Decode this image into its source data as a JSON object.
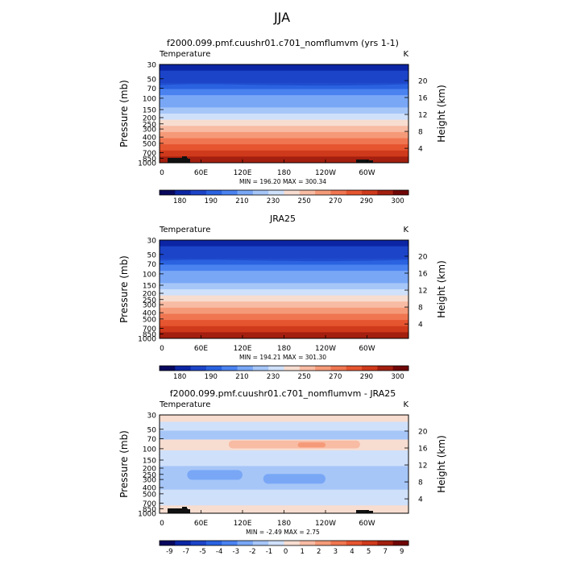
{
  "suptitle": "JJA",
  "chart_data": [
    {
      "type": "heatmap",
      "title": "f2000.099.pmf.cuushr01.c701_nomflumvm (yrs 1-1)",
      "corner_left": "Temperature",
      "corner_right": "K",
      "ylabel": "Pressure (mb)",
      "ylabel_right": "Height (km)",
      "yticks": [
        "30",
        "50",
        "70",
        "100",
        "150",
        "200",
        "250",
        "300",
        "400",
        "500",
        "700",
        "850",
        "1000"
      ],
      "yticks_right": [
        "20",
        "16",
        "12",
        "8",
        "4"
      ],
      "xticks": [
        "0",
        "60E",
        "120E",
        "180",
        "120W",
        "60W"
      ],
      "stats": "MIN = 196.20   MAX = 300.34",
      "colorbar_labels": [
        "180",
        "190",
        "210",
        "230",
        "250",
        "270",
        "290",
        "300"
      ],
      "colorbar_colors": [
        "#08085e",
        "#0b25a4",
        "#1c44c8",
        "#2a62e0",
        "#4a82f0",
        "#79a7f6",
        "#a6c6f8",
        "#cfe0fa",
        "#f7ddd0",
        "#f8bba3",
        "#f59a78",
        "#ef7651",
        "#e55530",
        "#cf3a1c",
        "#a31f0f",
        "#700606"
      ],
      "level_bands": [
        1,
        2,
        2,
        3,
        4,
        5,
        5,
        6,
        7,
        8,
        9,
        10,
        11,
        12,
        13,
        14
      ],
      "topography": true
    },
    {
      "type": "heatmap",
      "title": "JRA25",
      "corner_left": "Temperature",
      "corner_right": "K",
      "ylabel": "Pressure (mb)",
      "ylabel_right": "Height (km)",
      "yticks": [
        "30",
        "50",
        "70",
        "100",
        "150",
        "200",
        "250",
        "300",
        "400",
        "500",
        "700",
        "850",
        "1000"
      ],
      "yticks_right": [
        "20",
        "16",
        "12",
        "8",
        "4"
      ],
      "xticks": [
        "0",
        "60E",
        "120E",
        "180",
        "120W",
        "60W"
      ],
      "stats": "MIN = 194.21   MAX = 301.30",
      "colorbar_labels": [
        "180",
        "190",
        "210",
        "230",
        "250",
        "270",
        "290",
        "300"
      ],
      "colorbar_colors": [
        "#08085e",
        "#0b25a4",
        "#1c44c8",
        "#2a62e0",
        "#4a82f0",
        "#79a7f6",
        "#a6c6f8",
        "#cfe0fa",
        "#f7ddd0",
        "#f8bba3",
        "#f59a78",
        "#ef7651",
        "#e55530",
        "#cf3a1c",
        "#a31f0f",
        "#700606"
      ],
      "level_bands": [
        1,
        2,
        2,
        3,
        4,
        5,
        5,
        6,
        7,
        8,
        9,
        10,
        11,
        12,
        13,
        14
      ],
      "topography": false
    },
    {
      "type": "heatmap",
      "title": "f2000.099.pmf.cuushr01.c701_nomflumvm - JRA25",
      "corner_left": "Temperature",
      "corner_right": "K",
      "ylabel": "Pressure (mb)",
      "ylabel_right": "Height (km)",
      "yticks": [
        "30",
        "50",
        "70",
        "100",
        "150",
        "200",
        "250",
        "300",
        "400",
        "500",
        "700",
        "850",
        "1000"
      ],
      "yticks_right": [
        "20",
        "16",
        "12",
        "8",
        "4"
      ],
      "xticks": [
        "0",
        "60E",
        "120E",
        "180",
        "120W",
        "60W"
      ],
      "stats": "MIN = -2.49   MAX = 2.75",
      "colorbar_labels": [
        "-9",
        "-7",
        "-5",
        "-4",
        "-3",
        "-2",
        "-1",
        "0",
        "1",
        "2",
        "3",
        "4",
        "5",
        "7",
        "9"
      ],
      "colorbar_colors": [
        "#08085e",
        "#0b25a4",
        "#1c44c8",
        "#2a62e0",
        "#4a82f0",
        "#79a7f6",
        "#a6c6f8",
        "#cfe0fa",
        "#f7ddd0",
        "#f8bba3",
        "#f59a78",
        "#ef7651",
        "#e55530",
        "#cf3a1c",
        "#a31f0f",
        "#700606"
      ],
      "diff_pattern": [
        {
          "x0": 0,
          "x1": 360,
          "p0": 0,
          "p1": 0.07,
          "band": 8
        },
        {
          "x0": 0,
          "x1": 360,
          "p0": 0.07,
          "p1": 0.16,
          "band": 7
        },
        {
          "x0": 0,
          "x1": 360,
          "p0": 0.16,
          "p1": 0.25,
          "band": 6
        },
        {
          "x0": 0,
          "x1": 360,
          "p0": 0.25,
          "p1": 0.36,
          "band": 8
        },
        {
          "x0": 100,
          "x1": 290,
          "p0": 0.26,
          "p1": 0.34,
          "band": 9
        },
        {
          "x0": 200,
          "x1": 240,
          "p0": 0.28,
          "p1": 0.33,
          "band": 10
        },
        {
          "x0": 0,
          "x1": 360,
          "p0": 0.36,
          "p1": 0.52,
          "band": 7
        },
        {
          "x0": 0,
          "x1": 360,
          "p0": 0.52,
          "p1": 0.76,
          "band": 6
        },
        {
          "x0": 40,
          "x1": 120,
          "p0": 0.56,
          "p1": 0.66,
          "band": 5
        },
        {
          "x0": 150,
          "x1": 240,
          "p0": 0.6,
          "p1": 0.7,
          "band": 5
        },
        {
          "x0": 0,
          "x1": 360,
          "p0": 0.76,
          "p1": 0.92,
          "band": 7
        },
        {
          "x0": 0,
          "x1": 360,
          "p0": 0.92,
          "p1": 1.0,
          "band": 8
        }
      ],
      "topography": true
    }
  ]
}
